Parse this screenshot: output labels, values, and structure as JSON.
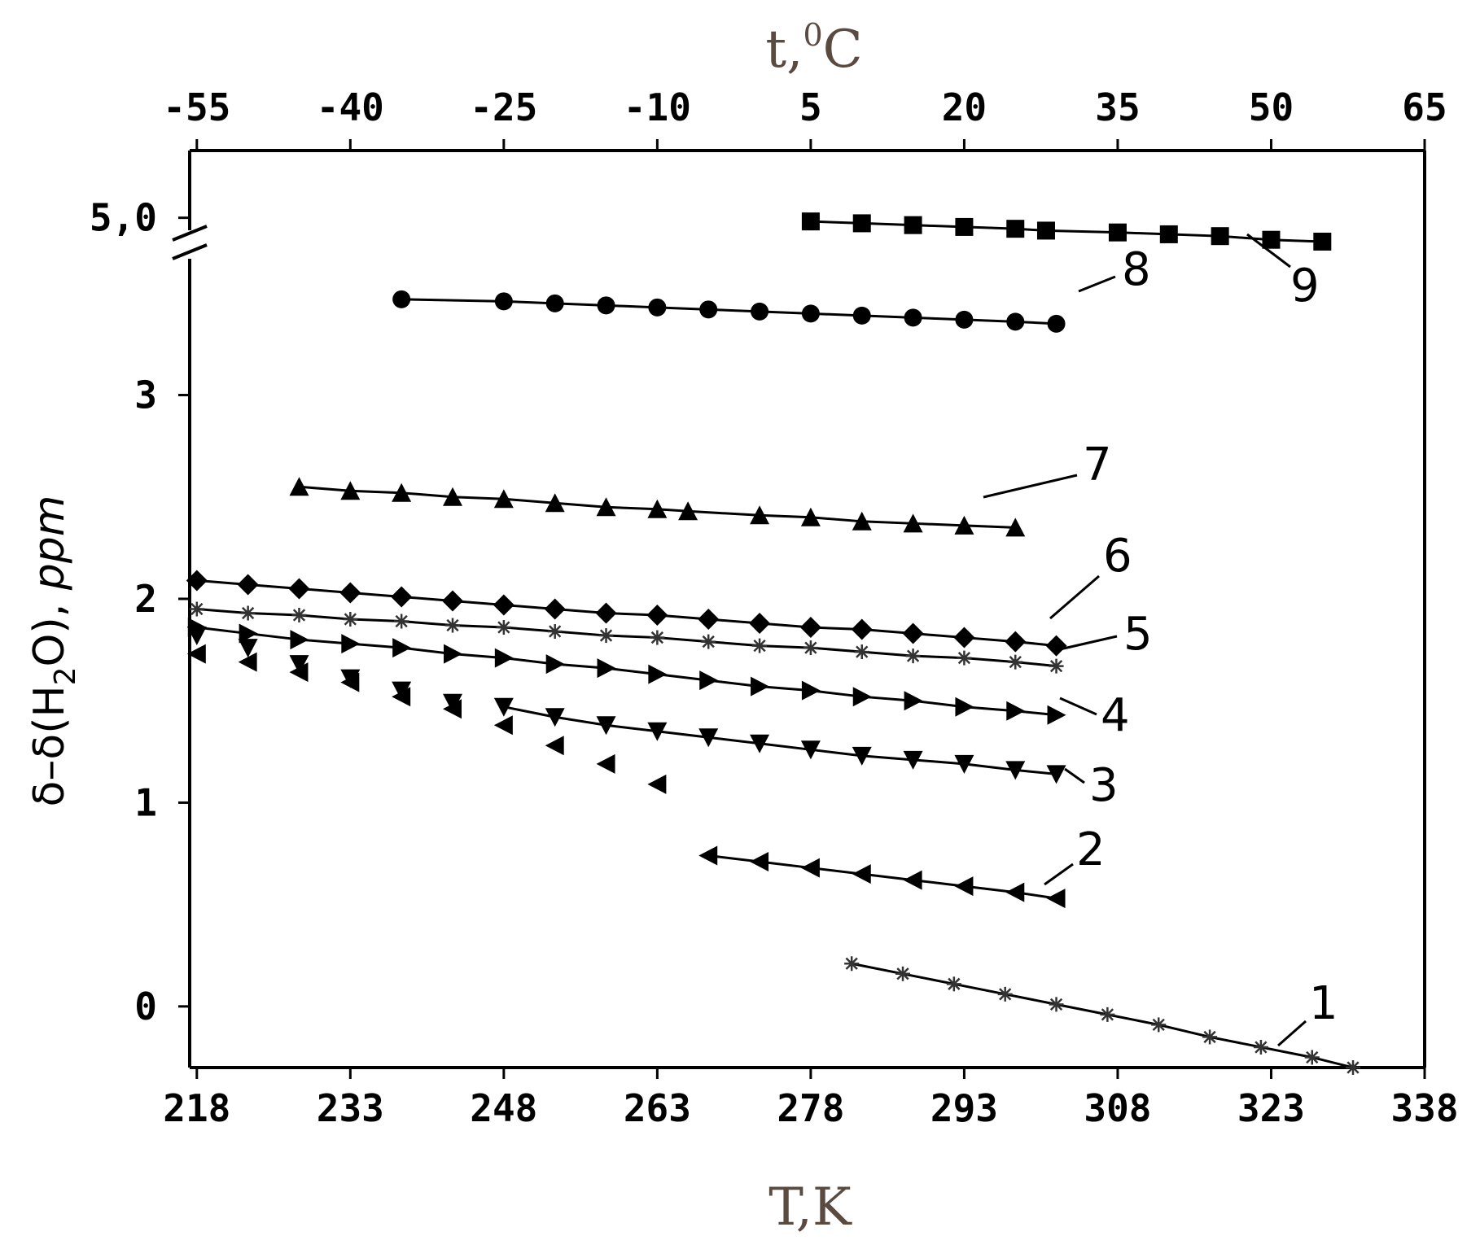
{
  "chart_data": {
    "type": "scatter",
    "x_axis_bottom": {
      "label": "T,K",
      "ticks": [
        218,
        233,
        248,
        263,
        278,
        293,
        308,
        323,
        338
      ],
      "tick_labels": [
        "218",
        "233",
        "248",
        "263",
        "278",
        "293",
        "308",
        "323",
        "338"
      ],
      "range": [
        217.3,
        338
      ]
    },
    "x_axis_top": {
      "label": "t,",
      "label_sup": "0",
      "label_unit": "C",
      "tick_labels": [
        "-55",
        "-40",
        "-25",
        "-10",
        "5",
        "20",
        "35",
        "50",
        "65"
      ]
    },
    "y_axis": {
      "label_main": "δ–δ(H",
      "label_sub": "2",
      "label_tail": "O), ",
      "label_unit": "ppm",
      "ticks": [
        0,
        1,
        2,
        3
      ],
      "tick_labels": [
        "0",
        "1",
        "2",
        "3"
      ],
      "break_label": "5,0",
      "range": [
        -0.3,
        4.2
      ],
      "break_value_display": 3.87
    },
    "series": [
      {
        "name": "1",
        "marker": "star",
        "x": [
          282,
          287,
          292,
          297,
          302,
          307,
          312,
          317,
          322,
          327,
          331
        ],
        "y": [
          0.21,
          0.16,
          0.11,
          0.06,
          0.01,
          -0.04,
          -0.09,
          -0.15,
          -0.2,
          -0.25,
          -0.3
        ],
        "line": true
      },
      {
        "name": "2",
        "marker": "triangle-left",
        "x": [
          268,
          273,
          278,
          283,
          288,
          293,
          298,
          302
        ],
        "y": [
          0.74,
          0.71,
          0.68,
          0.65,
          0.62,
          0.59,
          0.56,
          0.53
        ],
        "line": true
      },
      {
        "name": "2",
        "marker": "triangle-left",
        "x": [
          218,
          223,
          228,
          233,
          238,
          243,
          248,
          253,
          258,
          263
        ],
        "y": [
          1.73,
          1.69,
          1.64,
          1.59,
          1.52,
          1.46,
          1.38,
          1.28,
          1.19,
          1.09
        ],
        "line": false
      },
      {
        "name": "3",
        "marker": "triangle-down",
        "x": [
          248,
          253,
          258,
          263,
          268,
          273,
          278,
          283,
          288,
          293,
          298,
          302
        ],
        "y": [
          1.47,
          1.42,
          1.38,
          1.35,
          1.32,
          1.29,
          1.26,
          1.23,
          1.21,
          1.19,
          1.16,
          1.14
        ],
        "line": true
      },
      {
        "name": "3",
        "marker": "triangle-down",
        "x": [
          218,
          223,
          228,
          233,
          238,
          243
        ],
        "y": [
          1.82,
          1.76,
          1.68,
          1.61,
          1.55,
          1.49
        ],
        "line": false
      },
      {
        "name": "4",
        "marker": "triangle-right",
        "x": [
          218,
          223,
          228,
          233,
          238,
          243,
          248,
          253,
          258,
          263,
          268,
          273,
          278,
          283,
          288,
          293,
          298,
          302
        ],
        "y": [
          1.86,
          1.83,
          1.8,
          1.78,
          1.76,
          1.73,
          1.71,
          1.68,
          1.66,
          1.63,
          1.6,
          1.57,
          1.55,
          1.52,
          1.5,
          1.47,
          1.45,
          1.43
        ],
        "line": true
      },
      {
        "name": "5",
        "marker": "star",
        "x": [
          218,
          223,
          228,
          233,
          238,
          243,
          248,
          253,
          258,
          263,
          268,
          273,
          278,
          283,
          288,
          293,
          298,
          302
        ],
        "y": [
          1.95,
          1.93,
          1.92,
          1.9,
          1.89,
          1.87,
          1.86,
          1.84,
          1.82,
          1.81,
          1.79,
          1.77,
          1.76,
          1.74,
          1.72,
          1.71,
          1.69,
          1.67
        ],
        "line": true
      },
      {
        "name": "6",
        "marker": "diamond",
        "x": [
          218,
          223,
          228,
          233,
          238,
          243,
          248,
          253,
          258,
          263,
          268,
          273,
          278,
          283,
          288,
          293,
          298,
          302
        ],
        "y": [
          2.09,
          2.07,
          2.05,
          2.03,
          2.01,
          1.99,
          1.97,
          1.95,
          1.93,
          1.92,
          1.9,
          1.88,
          1.86,
          1.85,
          1.83,
          1.81,
          1.79,
          1.77
        ],
        "line": true
      },
      {
        "name": "7",
        "marker": "triangle-up",
        "x": [
          228,
          233,
          238,
          243,
          248,
          253,
          258,
          263,
          266,
          273,
          278,
          283,
          288,
          293,
          298
        ],
        "y": [
          2.55,
          2.53,
          2.52,
          2.5,
          2.49,
          2.47,
          2.45,
          2.44,
          2.43,
          2.41,
          2.4,
          2.38,
          2.37,
          2.36,
          2.35
        ],
        "line": true
      },
      {
        "name": "8",
        "marker": "circle",
        "x": [
          238,
          248,
          253,
          258,
          263,
          268,
          273,
          278,
          283,
          288,
          293,
          298,
          302
        ],
        "y": [
          3.47,
          3.46,
          3.45,
          3.44,
          3.43,
          3.42,
          3.41,
          3.4,
          3.39,
          3.38,
          3.37,
          3.36,
          3.35
        ],
        "line": true
      },
      {
        "name": "9",
        "marker": "square",
        "x": [
          278,
          283,
          288,
          293,
          298,
          301,
          308,
          313,
          318,
          323,
          328
        ],
        "y": [
          4.98,
          4.97,
          4.96,
          4.95,
          4.94,
          4.93,
          4.92,
          4.91,
          4.9,
          4.88,
          4.87
        ],
        "line": true
      }
    ],
    "labels": [
      "1",
      "2",
      "3",
      "4",
      "5",
      "6",
      "7",
      "8",
      "9"
    ],
    "grid": false,
    "legend": "none"
  }
}
